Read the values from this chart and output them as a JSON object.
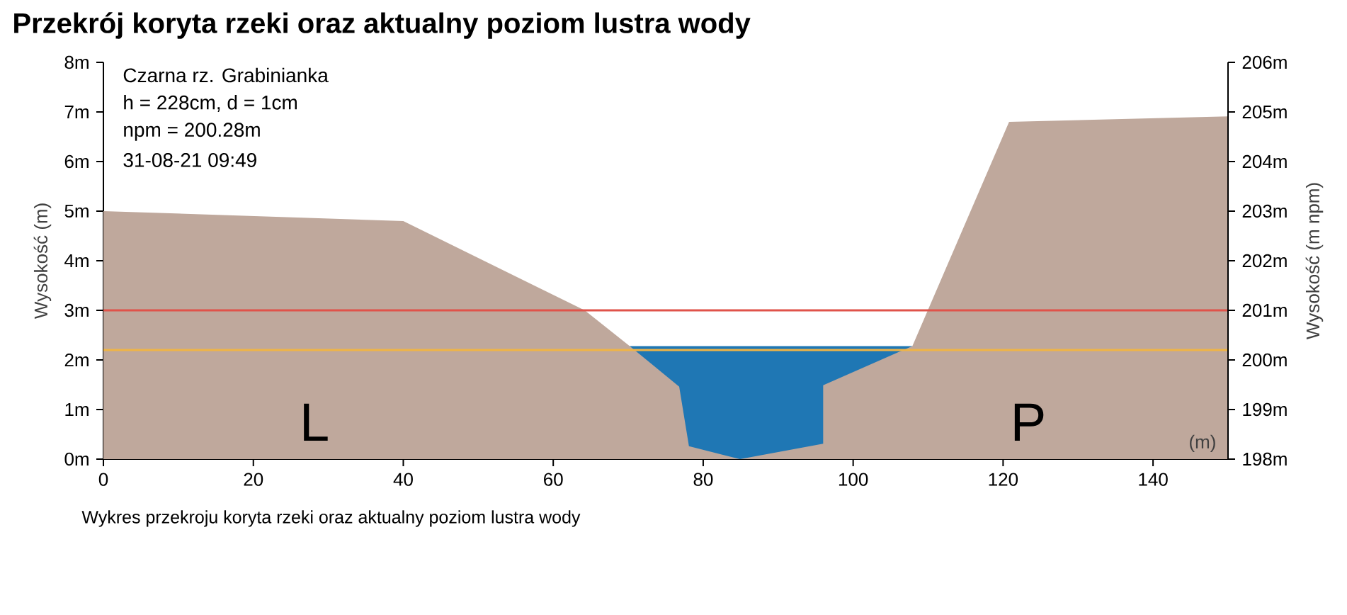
{
  "chart_data": {
    "type": "area",
    "title": "Przekrój koryta rzeki oraz aktualny poziom lustra wody",
    "xlabel": "(m)",
    "ylabel": "Wysokość (m)",
    "y2label": "Wysokość (m npm)",
    "xlim": [
      0,
      150
    ],
    "xticks": [
      0,
      20,
      40,
      60,
      80,
      100,
      120,
      140
    ],
    "ylim": [
      0,
      8
    ],
    "yticks": [
      {
        "value": 0,
        "label": "0m"
      },
      {
        "value": 1,
        "label": "1m"
      },
      {
        "value": 2,
        "label": "2m"
      },
      {
        "value": 3,
        "label": "3m"
      },
      {
        "value": 4,
        "label": "4m"
      },
      {
        "value": 5,
        "label": "5m"
      },
      {
        "value": 6,
        "label": "6m"
      },
      {
        "value": 7,
        "label": "7m"
      },
      {
        "value": 8,
        "label": "8m"
      }
    ],
    "y2lim": [
      198,
      206
    ],
    "y2ticks": [
      {
        "value": 198,
        "label": "198m"
      },
      {
        "value": 199,
        "label": "199m"
      },
      {
        "value": 200,
        "label": "200m"
      },
      {
        "value": 201,
        "label": "201m"
      },
      {
        "value": 202,
        "label": "202m"
      },
      {
        "value": 203,
        "label": "203m"
      },
      {
        "value": 204,
        "label": "204m"
      },
      {
        "value": 205,
        "label": "205m"
      },
      {
        "value": 206,
        "label": "206m"
      }
    ],
    "series": [
      {
        "color": "#1f77b4",
        "x": [
          70.2,
          107.9
        ],
        "values": [
          2.28,
          2.28
        ]
      },
      {
        "color": "#bfa89c",
        "x": [
          0,
          40,
          64.2,
          70.2,
          76.8,
          78.1,
          84.9,
          96,
          96,
          107.9,
          120.8,
          150
        ],
        "values": [
          5,
          4.8,
          3,
          2.28,
          1.46,
          0.26,
          0,
          0.31,
          1.49,
          2.28,
          6.8,
          6.91
        ]
      }
    ],
    "ref_lines": [
      {
        "axis": "y",
        "value": 3,
        "color": "#e0534a"
      },
      {
        "axis": "y",
        "value": 2.2,
        "color": "#f0b445"
      }
    ],
    "annotations": [
      "Czarna rz. Grabinianka",
      "h = 228cm, d = 1cm",
      "npm = 200.28m",
      "31-08-21 09:49",
      "L",
      "P",
      "Wykres przekroju koryta rzeki oraz aktualny poziom lustra wody"
    ],
    "grid": false
  }
}
